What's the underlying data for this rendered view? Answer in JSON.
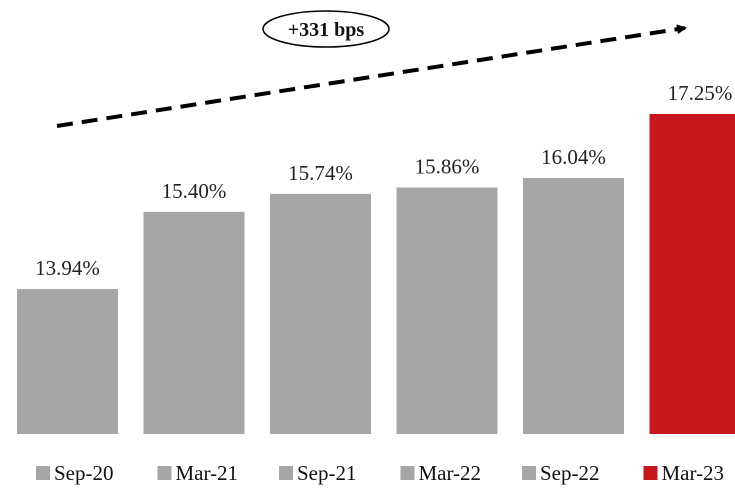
{
  "chart_data": {
    "type": "bar",
    "title": "",
    "xlabel": "",
    "ylabel": "",
    "categories": [
      "Sep-20",
      "Mar-21",
      "Sep-21",
      "Mar-22",
      "Sep-22",
      "Mar-23"
    ],
    "values": [
      13.94,
      15.4,
      15.74,
      15.86,
      16.04,
      17.25
    ],
    "value_labels": [
      "13.94%",
      "15.40%",
      "15.74%",
      "15.86%",
      "16.04%",
      "17.25%"
    ],
    "ylim": [
      0,
      17.25
    ],
    "grid": false,
    "legend": {
      "placement": "bottom",
      "entries": [
        "Sep-20",
        "Mar-21",
        "Sep-21",
        "Mar-22",
        "Sep-22",
        "Mar-23"
      ]
    },
    "colors": [
      "#a6a6a6",
      "#a6a6a6",
      "#a6a6a6",
      "#a6a6a6",
      "#a6a6a6",
      "#c8161d"
    ],
    "annotation": {
      "text": "+331 bps"
    }
  }
}
